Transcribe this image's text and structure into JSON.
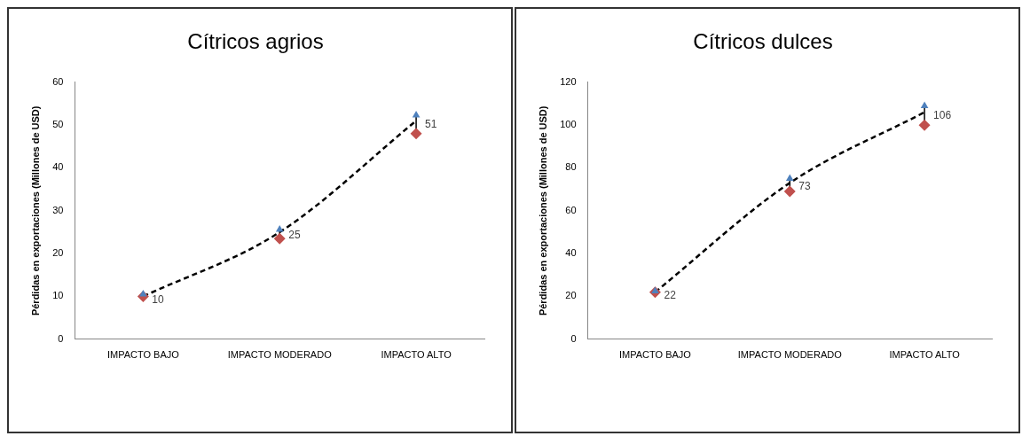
{
  "chart_data": [
    {
      "type": "line",
      "title": "Cítricos agrios",
      "ylabel": "Pérdidas en exportaciones (Millones de USD)",
      "categories": [
        "IMPACTO BAJO",
        "IMPACTO MODERADO",
        "IMPACTO ALTO"
      ],
      "ylim": [
        0,
        60
      ],
      "yticks": [
        0,
        10,
        20,
        30,
        40,
        50,
        60
      ],
      "grid": false,
      "legend": false,
      "series": [
        {
          "color": "#000000",
          "line_style": "dashed",
          "marker": "none",
          "values": [
            10,
            25,
            51
          ],
          "value_labels": [
            "10",
            "25",
            "51"
          ]
        },
        {
          "type": "scatter",
          "color": "#4f81bd",
          "marker": "triangle",
          "values": [
            10.5,
            25.6,
            52.3
          ]
        },
        {
          "type": "scatter",
          "color": "#c0504d",
          "marker": "diamond",
          "values": [
            10,
            23.5,
            48
          ]
        }
      ]
    },
    {
      "type": "line",
      "title": "Cítricos dulces",
      "ylabel": "Pérdidas en exportaciones (Millones de USD)",
      "categories": [
        "IMPACTO BAJO",
        "IMPACTO MODERADO",
        "IMPACTO ALTO"
      ],
      "ylim": [
        0,
        120
      ],
      "yticks": [
        0,
        20,
        40,
        60,
        80,
        100,
        120
      ],
      "grid": false,
      "legend": false,
      "series": [
        {
          "color": "#000000",
          "line_style": "dashed",
          "marker": "none",
          "values": [
            22,
            73,
            106
          ],
          "value_labels": [
            "22",
            "73",
            "106"
          ]
        },
        {
          "type": "scatter",
          "color": "#4f81bd",
          "marker": "triangle",
          "values": [
            22.5,
            75,
            109
          ]
        },
        {
          "type": "scatter",
          "color": "#c0504d",
          "marker": "diamond",
          "values": [
            22,
            69,
            100
          ]
        }
      ]
    }
  ]
}
